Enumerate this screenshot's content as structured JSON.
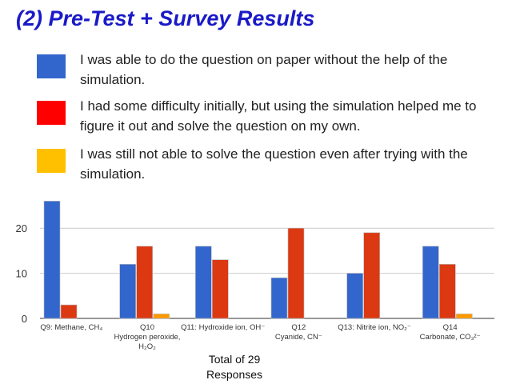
{
  "slide": {
    "title": "(2) Pre-Test + Survey Results",
    "total_line1": "Total of 29",
    "total_line2": "Responses"
  },
  "legend": [
    {
      "color": "#3366cc",
      "text": "I was able to do the question on paper without the help of the simulation."
    },
    {
      "color": "#ff0000",
      "text": "I had some difficulty initially, but using the simulation helped me to figure it out and solve the question on my own."
    },
    {
      "color": "#ffc000",
      "text": "I was still not able to solve the question even after trying with the simulation."
    }
  ],
  "chart_data": {
    "type": "bar",
    "categories": [
      [
        "Q9: Methane, CH₄"
      ],
      [
        "Q10",
        "Hydrogen peroxide,",
        "H₂O₂"
      ],
      [
        "Q11: Hydroxide ion, OH⁻"
      ],
      [
        "Q12",
        "Cyanide, CN⁻"
      ],
      [
        "Q13: Nitrite ion, NO₂⁻"
      ],
      [
        "Q14",
        "Carbonate, CO₃²⁻"
      ]
    ],
    "series": [
      {
        "color": "#3366cc",
        "values": [
          26,
          12,
          16,
          9,
          10,
          16
        ]
      },
      {
        "color": "#dc3912",
        "values": [
          3,
          16,
          13,
          20,
          19,
          12
        ]
      },
      {
        "color": "#ff9900",
        "values": [
          0,
          1,
          0,
          0,
          0,
          1
        ]
      }
    ],
    "yticks": [
      0,
      10,
      20
    ],
    "ylim": [
      0,
      26
    ],
    "grid": true,
    "title": "",
    "xlabel": "",
    "ylabel": ""
  }
}
